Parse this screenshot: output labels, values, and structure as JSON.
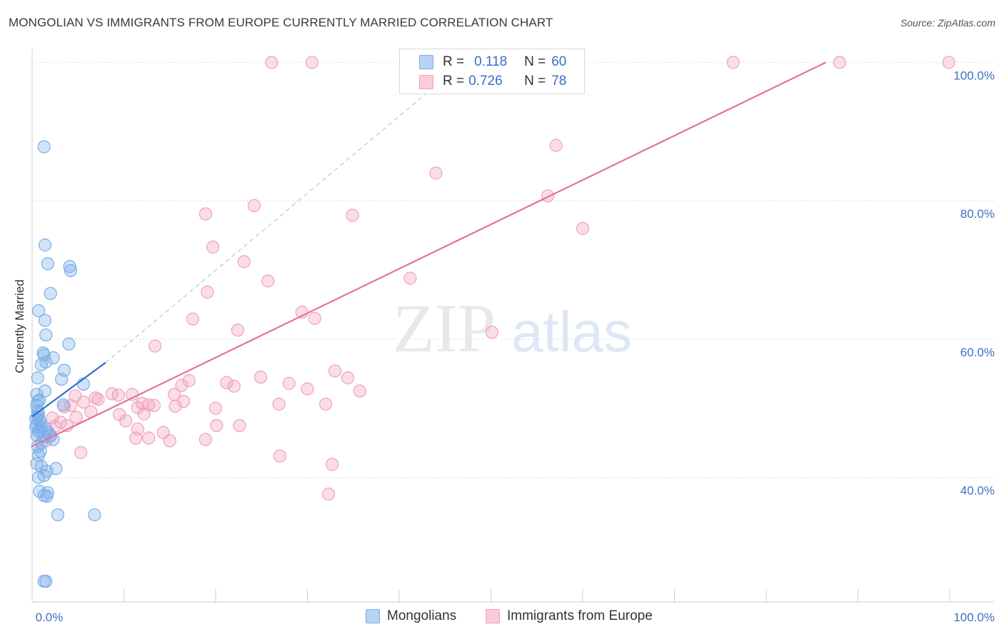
{
  "header": {
    "title": "MONGOLIAN VS IMMIGRANTS FROM EUROPE CURRENTLY MARRIED CORRELATION CHART",
    "source": "Source: ZipAtlas.com"
  },
  "watermark": {
    "zip": "ZIP",
    "atlas": "atlas"
  },
  "colors": {
    "blue": "#7aaee8",
    "blue_line": "#2f6fcf",
    "pink": "#f2a0bb",
    "pink_line": "#e5719a",
    "grid": "#dcdcdc",
    "tick_label": "#3b6fc6"
  },
  "legend": {
    "r_label": "R =",
    "n_label": "N =",
    "mongolian": {
      "r": "0.118",
      "n": "60"
    },
    "europe": {
      "r": "0.726",
      "n": "78"
    }
  },
  "bottom_legend": {
    "mongolians": "Mongolians",
    "europe": "Immigrants from Europe"
  },
  "chart_data": {
    "type": "scatter",
    "title": "MONGOLIAN VS IMMIGRANTS FROM EUROPE CURRENTLY MARRIED CORRELATION CHART",
    "xlabel": "",
    "ylabel": "Currently Married",
    "xlim": [
      0,
      100
    ],
    "ylim": [
      22,
      102
    ],
    "x_tick_labels": [
      "0.0%",
      "100.0%"
    ],
    "y_ticks": [
      40,
      60,
      80,
      100
    ],
    "y_tick_labels": [
      "40.0%",
      "60.0%",
      "80.0%",
      "100.0%"
    ],
    "grid": true,
    "legend_placement": "top-center",
    "series": [
      {
        "name": "Mongolians",
        "r": 0.118,
        "n": 60,
        "trend": {
          "x": [
            0,
            8
          ],
          "y": [
            48.8,
            56.6
          ],
          "dashed_to": [
            47,
            100
          ]
        },
        "points": [
          [
            1.3,
            87.8
          ],
          [
            1.4,
            73.6
          ],
          [
            1.7,
            70.9
          ],
          [
            4.1,
            70.5
          ],
          [
            4.2,
            69.9
          ],
          [
            2.0,
            66.6
          ],
          [
            0.7,
            64.1
          ],
          [
            1.4,
            62.7
          ],
          [
            1.5,
            60.6
          ],
          [
            4.0,
            59.3
          ],
          [
            1.2,
            58.0
          ],
          [
            1.3,
            57.7
          ],
          [
            2.3,
            57.3
          ],
          [
            1.5,
            56.7
          ],
          [
            1.0,
            56.3
          ],
          [
            3.5,
            55.5
          ],
          [
            0.6,
            54.4
          ],
          [
            3.2,
            54.2
          ],
          [
            5.6,
            53.5
          ],
          [
            1.4,
            52.5
          ],
          [
            0.5,
            52.0
          ],
          [
            0.6,
            51.0
          ],
          [
            0.8,
            51.2
          ],
          [
            0.5,
            50.4
          ],
          [
            3.4,
            50.5
          ],
          [
            0.6,
            49.6
          ],
          [
            0.7,
            49.2
          ],
          [
            0.6,
            48.8
          ],
          [
            0.8,
            48.3
          ],
          [
            0.9,
            48.0
          ],
          [
            0.5,
            47.7
          ],
          [
            1.0,
            47.3
          ],
          [
            1.5,
            47.0
          ],
          [
            0.7,
            46.6
          ],
          [
            0.8,
            46.9
          ],
          [
            0.5,
            46.1
          ],
          [
            1.8,
            46.5
          ],
          [
            1.3,
            45.9
          ],
          [
            2.0,
            46.0
          ],
          [
            2.3,
            45.5
          ],
          [
            1.0,
            45.0
          ],
          [
            0.6,
            44.5
          ],
          [
            0.9,
            43.8
          ],
          [
            0.7,
            43.2
          ],
          [
            0.5,
            42.0
          ],
          [
            1.0,
            41.6
          ],
          [
            2.6,
            41.3
          ],
          [
            1.6,
            40.9
          ],
          [
            1.3,
            40.3
          ],
          [
            0.7,
            40.0
          ],
          [
            0.8,
            38.0
          ],
          [
            1.7,
            37.8
          ],
          [
            1.3,
            37.4
          ],
          [
            1.6,
            37.3
          ],
          [
            2.8,
            34.6
          ],
          [
            6.8,
            34.6
          ],
          [
            1.3,
            25.0
          ],
          [
            1.5,
            25.0
          ],
          [
            0.4,
            48.5
          ],
          [
            0.4,
            47.3
          ]
        ]
      },
      {
        "name": "Immigrants from Europe",
        "r": 0.726,
        "n": 78,
        "trend": {
          "x": [
            0,
            86.5
          ],
          "y": [
            44.5,
            100
          ]
        },
        "points": [
          [
            26.1,
            100
          ],
          [
            30.5,
            100
          ],
          [
            47.3,
            100
          ],
          [
            47.6,
            100
          ],
          [
            55.9,
            100
          ],
          [
            76.4,
            100
          ],
          [
            88.0,
            100
          ],
          [
            99.9,
            100
          ],
          [
            57.1,
            88.0
          ],
          [
            44.0,
            84.0
          ],
          [
            56.2,
            80.7
          ],
          [
            24.2,
            79.3
          ],
          [
            18.9,
            78.1
          ],
          [
            34.9,
            77.9
          ],
          [
            60.0,
            76.0
          ],
          [
            19.7,
            73.3
          ],
          [
            23.1,
            71.2
          ],
          [
            25.7,
            68.4
          ],
          [
            41.2,
            68.8
          ],
          [
            19.1,
            66.8
          ],
          [
            29.4,
            63.9
          ],
          [
            17.5,
            62.9
          ],
          [
            30.8,
            63.0
          ],
          [
            22.4,
            61.3
          ],
          [
            50.1,
            61.0
          ],
          [
            13.4,
            59.0
          ],
          [
            33.0,
            55.4
          ],
          [
            24.9,
            54.5
          ],
          [
            34.4,
            54.4
          ],
          [
            17.1,
            54.0
          ],
          [
            21.2,
            53.7
          ],
          [
            28.0,
            53.6
          ],
          [
            16.3,
            53.3
          ],
          [
            22.0,
            53.2
          ],
          [
            8.7,
            52.1
          ],
          [
            9.4,
            51.9
          ],
          [
            10.9,
            52.0
          ],
          [
            15.5,
            52.0
          ],
          [
            4.7,
            51.8
          ],
          [
            6.9,
            51.5
          ],
          [
            7.2,
            51.3
          ],
          [
            35.7,
            52.5
          ],
          [
            30.0,
            52.8
          ],
          [
            5.6,
            50.9
          ],
          [
            16.5,
            51.0
          ],
          [
            12.0,
            50.7
          ],
          [
            12.7,
            50.5
          ],
          [
            26.9,
            50.6
          ],
          [
            32.0,
            50.6
          ],
          [
            4.2,
            50.4
          ],
          [
            3.5,
            50.2
          ],
          [
            11.5,
            50.1
          ],
          [
            13.3,
            50.4
          ],
          [
            15.6,
            50.3
          ],
          [
            20.0,
            50.0
          ],
          [
            6.4,
            49.5
          ],
          [
            9.5,
            49.1
          ],
          [
            4.8,
            48.7
          ],
          [
            12.2,
            49.2
          ],
          [
            2.2,
            48.6
          ],
          [
            10.2,
            48.2
          ],
          [
            3.1,
            48.0
          ],
          [
            2.5,
            47.4
          ],
          [
            3.8,
            47.5
          ],
          [
            20.1,
            47.5
          ],
          [
            22.6,
            47.5
          ],
          [
            11.5,
            47.0
          ],
          [
            14.3,
            46.5
          ],
          [
            2.0,
            46.1
          ],
          [
            1.5,
            45.3
          ],
          [
            11.3,
            45.7
          ],
          [
            12.7,
            45.7
          ],
          [
            15.0,
            45.3
          ],
          [
            18.9,
            45.5
          ],
          [
            5.3,
            43.6
          ],
          [
            27.0,
            43.1
          ],
          [
            32.7,
            41.9
          ],
          [
            32.3,
            37.6
          ]
        ]
      }
    ]
  }
}
